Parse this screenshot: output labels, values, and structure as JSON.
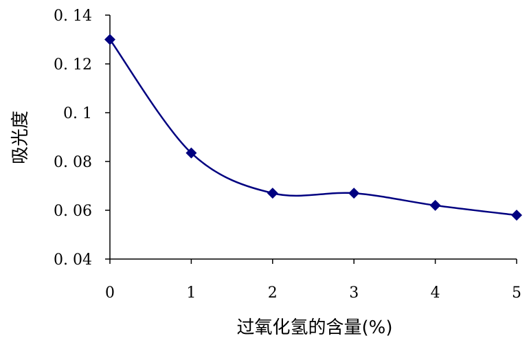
{
  "chart_data": {
    "type": "line",
    "xlabel": "过氧化氢的含量(%)",
    "ylabel": "吸光度",
    "x": [
      0,
      1,
      2,
      3,
      4,
      5
    ],
    "series": [
      {
        "values": [
          0.13,
          0.0835,
          0.067,
          0.067,
          0.062,
          0.058
        ],
        "color": "#000080"
      }
    ],
    "xlim": [
      0,
      5
    ],
    "ylim": [
      0.04,
      0.14
    ],
    "xticks": [
      "0",
      "1",
      "2",
      "3",
      "4",
      "5"
    ],
    "yticks": [
      "0. 04",
      "0. 06",
      "0. 08",
      "0. 1",
      "0. 12",
      "0. 14"
    ],
    "ytick_values": [
      0.04,
      0.06,
      0.08,
      0.1,
      0.12,
      0.14
    ],
    "grid": false,
    "smooth": true,
    "marker": "diamond"
  }
}
